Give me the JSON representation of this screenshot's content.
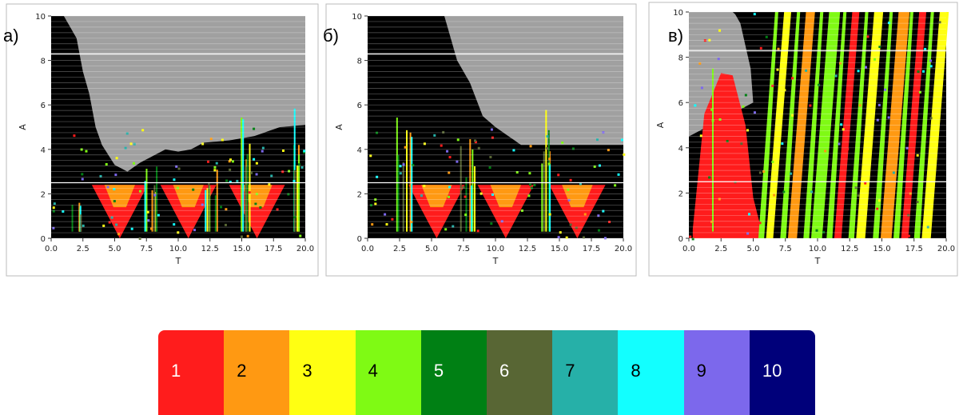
{
  "chart_data": [
    {
      "type": "scatter",
      "panel_label": "а)",
      "xlabel": "T",
      "ylabel": "A",
      "xlim": [
        0,
        20
      ],
      "ylim": [
        0,
        10
      ],
      "xticks": [
        "0.0",
        "2.5",
        "5.0",
        "7.5",
        "10.0",
        "12.5",
        "15.0",
        "17.5",
        "20.0"
      ],
      "yticks": [
        "0",
        "2",
        "4",
        "6",
        "8",
        "10"
      ],
      "x_range_plotted": [
        0,
        20
      ],
      "boundary": [
        [
          0,
          10
        ],
        [
          1,
          10
        ],
        [
          2,
          9
        ],
        [
          2.5,
          7.5
        ],
        [
          3,
          6.5
        ],
        [
          3.5,
          5
        ],
        [
          4,
          4.2
        ],
        [
          5,
          3.3
        ],
        [
          6,
          3
        ],
        [
          7,
          3.4
        ],
        [
          8,
          3.7
        ],
        [
          9,
          4
        ],
        [
          10,
          3.9
        ],
        [
          11,
          4
        ],
        [
          12,
          4.3
        ],
        [
          14,
          4.4
        ],
        [
          16,
          4.6
        ],
        [
          18,
          5
        ],
        [
          20,
          5.1
        ]
      ],
      "red_triangle_centers": [
        5.4,
        10.8,
        16.2
      ],
      "bands": [
        [
          2,
          1.6
        ],
        [
          7.8,
          3.5
        ],
        [
          12.5,
          3.3
        ],
        [
          15,
          5.8
        ],
        [
          19.2,
          6
        ]
      ]
    },
    {
      "type": "scatter",
      "panel_label": "б)",
      "xlabel": "T",
      "ylabel": "A",
      "xlim": [
        0,
        20
      ],
      "ylim": [
        0,
        10
      ],
      "xticks": [
        "0.0",
        "2.5",
        "5.0",
        "7.5",
        "10.0",
        "12.5",
        "15.0",
        "17.5",
        "20.0"
      ],
      "yticks": [
        "0",
        "2",
        "4",
        "6",
        "8",
        "10"
      ],
      "boundary": [
        [
          0,
          10
        ],
        [
          6,
          10
        ],
        [
          7,
          8
        ],
        [
          8,
          7
        ],
        [
          9,
          5.5
        ],
        [
          10,
          5
        ],
        [
          11,
          4.6
        ],
        [
          12,
          4.2
        ],
        [
          14,
          4.2
        ],
        [
          16,
          4.2
        ],
        [
          18,
          4.2
        ],
        [
          20,
          4.2
        ]
      ],
      "red_triangle_centers": [
        5.4,
        10.8,
        16.4
      ],
      "bands": [
        [
          2.8,
          6.5
        ],
        [
          7.8,
          4.5
        ],
        [
          14,
          6.2
        ]
      ]
    },
    {
      "type": "scatter",
      "panel_label": "в)",
      "xlabel": "T",
      "ylabel": "A",
      "xlim": [
        0,
        20
      ],
      "ylim": [
        0,
        10
      ],
      "xticks": [
        "0.0",
        "2.5",
        "5.0",
        "7.5",
        "10.0",
        "12.5",
        "15.0",
        "17.5",
        "20.0"
      ],
      "yticks": [
        "0",
        "2",
        "4",
        "6",
        "8",
        "10"
      ],
      "boundary": [
        [
          0,
          10
        ],
        [
          3.5,
          10
        ],
        [
          4,
          9.5
        ],
        [
          4.8,
          7.5
        ],
        [
          5,
          6
        ],
        [
          5.2,
          5
        ]
      ],
      "red_triangle_centers": [
        3.2
      ],
      "stripes": [
        6.5,
        8.2,
        10,
        11.8,
        13.5,
        15.4,
        17,
        18.6
      ]
    }
  ],
  "legend": {
    "items": [
      {
        "label": "1",
        "color": "#ff1c1c",
        "text_color": "#ffffff"
      },
      {
        "label": "2",
        "color": "#ff9912",
        "text_color": "#000000"
      },
      {
        "label": "3",
        "color": "#ffff12",
        "text_color": "#000000"
      },
      {
        "label": "4",
        "color": "#7ffa14",
        "text_color": "#000000"
      },
      {
        "label": "5",
        "color": "#008014",
        "text_color": "#ffffff"
      },
      {
        "label": "6",
        "color": "#586634",
        "text_color": "#ffffff"
      },
      {
        "label": "7",
        "color": "#26b0a8",
        "text_color": "#000000"
      },
      {
        "label": "8",
        "color": "#12ffff",
        "text_color": "#000000"
      },
      {
        "label": "9",
        "color": "#7c68ec",
        "text_color": "#000000"
      },
      {
        "label": "10",
        "color": "#00007a",
        "text_color": "#ffffff"
      }
    ]
  },
  "colors": {
    "background_region": "#a0a0a0",
    "black_region": "#000000"
  }
}
